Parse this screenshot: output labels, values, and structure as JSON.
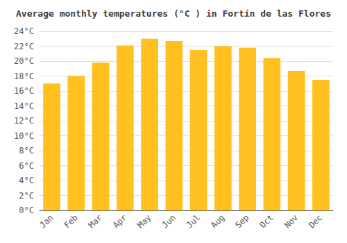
{
  "chart_data": {
    "type": "bar",
    "title": "Average monthly temperatures (°C ) in Fortín de las Flores",
    "categories": [
      "Jan",
      "Feb",
      "Mar",
      "Apr",
      "May",
      "Jun",
      "Jul",
      "Aug",
      "Sep",
      "Oct",
      "Nov",
      "Dec"
    ],
    "values": [
      17.0,
      18.0,
      19.8,
      22.1,
      23.0,
      22.7,
      21.5,
      22.0,
      21.8,
      20.4,
      18.7,
      17.5
    ],
    "color": "#FFC020",
    "ylim": [
      0,
      24
    ],
    "yticks": [
      {
        "value": 0,
        "label": "0°C"
      },
      {
        "value": 2,
        "label": "2°C"
      },
      {
        "value": 4,
        "label": "4°C"
      },
      {
        "value": 6,
        "label": "6°C"
      },
      {
        "value": 8,
        "label": "8°C"
      },
      {
        "value": 10,
        "label": "10°C"
      },
      {
        "value": 12,
        "label": "12°C"
      },
      {
        "value": 14,
        "label": "14°C"
      },
      {
        "value": 16,
        "label": "16°C"
      },
      {
        "value": 18,
        "label": "18°C"
      },
      {
        "value": 20,
        "label": "20°C"
      },
      {
        "value": 22,
        "label": "22°C"
      },
      {
        "value": 24,
        "label": "24°C"
      }
    ],
    "grid": true
  }
}
